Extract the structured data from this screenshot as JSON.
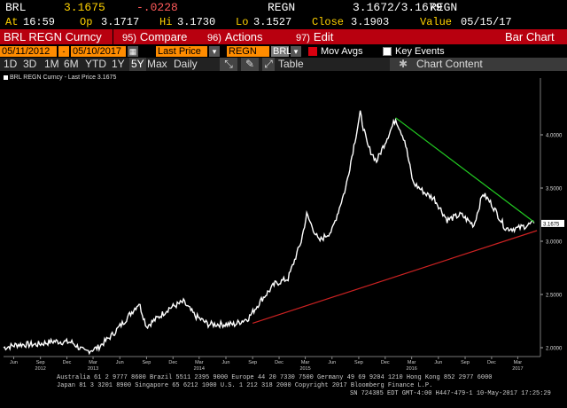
{
  "quote": {
    "ticker": "BRL",
    "last": "3.1675",
    "change": "-.0228",
    "bid_ask": "3.1672/3.1679",
    "bid_ask_label": "REGN",
    "source": "REGN"
  },
  "stats": {
    "at_label": "At",
    "at": "16:59",
    "op_label": "Op",
    "op": "3.1717",
    "hi_label": "Hi",
    "hi": "3.1730",
    "lo_label": "Lo",
    "lo": "3.1527",
    "close_label": "Close",
    "close": "3.1903",
    "value_label": "Value",
    "value": "05/15/17"
  },
  "functions": {
    "tab_label": "BRL REGN Curncy",
    "compare_num": "95)",
    "compare": "Compare",
    "actions_num": "96)",
    "actions": "Actions",
    "edit_num": "97)",
    "edit": "Edit",
    "chart_type": "Bar Chart"
  },
  "controls": {
    "start_date": "05/11/2012",
    "end_date": "05/10/2017",
    "price_type": "Last Price",
    "source": "REGN",
    "security": "BRL",
    "mov_avgs": "Mov Avgs",
    "key_events": "Key Events"
  },
  "periods": {
    "items": [
      "1D",
      "3D",
      "1M",
      "6M",
      "YTD",
      "1Y",
      "5Y",
      "Max"
    ],
    "active": "5Y",
    "frequency": "Daily",
    "table": "Table",
    "chart_content": "Chart Content"
  },
  "chart_data": {
    "type": "line",
    "legend": "BRL REGN Curncy - Last Price 3.1675",
    "last_price_label": "3.1675",
    "y_ticks": [
      "4.0000",
      "3.5000",
      "3.0000",
      "2.5000",
      "2.0000"
    ],
    "ylim": [
      1.95,
      4.45
    ],
    "x_month_labels": [
      "Jun",
      "Sep",
      "Dec",
      "Mar",
      "Jun",
      "Sep",
      "Dec",
      "Mar",
      "Jun",
      "Sep",
      "Dec",
      "Mar",
      "Jun",
      "Sep",
      "Dec",
      "Mar",
      "Jun",
      "Sep",
      "Dec",
      "Mar"
    ],
    "x_year_labels": [
      "2012",
      "2013",
      "2014",
      "2015",
      "2016",
      "2017"
    ],
    "series": [
      {
        "color": "#ffffff",
        "values": [
          [
            "2012-05-11",
            2.0
          ],
          [
            "2012-07-01",
            2.03
          ],
          [
            "2012-09-01",
            2.03
          ],
          [
            "2012-11-01",
            2.06
          ],
          [
            "2013-01-01",
            2.05
          ],
          [
            "2013-02-15",
            1.96
          ],
          [
            "2013-04-01",
            2.0
          ],
          [
            "2013-05-20",
            2.12
          ],
          [
            "2013-07-01",
            2.25
          ],
          [
            "2013-08-20",
            2.42
          ],
          [
            "2013-09-15",
            2.2
          ],
          [
            "2013-11-01",
            2.3
          ],
          [
            "2013-12-01",
            2.37
          ],
          [
            "2014-01-20",
            2.43
          ],
          [
            "2014-03-01",
            2.3
          ],
          [
            "2014-04-15",
            2.22
          ],
          [
            "2014-06-01",
            2.22
          ],
          [
            "2014-07-15",
            2.22
          ],
          [
            "2014-09-01",
            2.28
          ],
          [
            "2014-10-15",
            2.45
          ],
          [
            "2014-12-01",
            2.6
          ],
          [
            "2015-01-15",
            2.65
          ],
          [
            "2015-03-01",
            3.0
          ],
          [
            "2015-03-20",
            3.25
          ],
          [
            "2015-05-01",
            3.0
          ],
          [
            "2015-06-15",
            3.1
          ],
          [
            "2015-08-01",
            3.5
          ],
          [
            "2015-09-20",
            4.2
          ],
          [
            "2015-10-15",
            3.9
          ],
          [
            "2015-11-15",
            3.75
          ],
          [
            "2016-01-20",
            4.15
          ],
          [
            "2016-02-20",
            3.95
          ],
          [
            "2016-03-20",
            3.55
          ],
          [
            "2016-05-01",
            3.45
          ],
          [
            "2016-06-01",
            3.4
          ],
          [
            "2016-07-15",
            3.2
          ],
          [
            "2016-09-01",
            3.25
          ],
          [
            "2016-10-15",
            3.15
          ],
          [
            "2016-11-15",
            3.45
          ],
          [
            "2016-12-15",
            3.35
          ],
          [
            "2017-02-01",
            3.12
          ],
          [
            "2017-03-15",
            3.12
          ],
          [
            "2017-04-15",
            3.15
          ],
          [
            "2017-05-10",
            3.17
          ]
        ]
      }
    ],
    "trendlines": [
      {
        "color": "#22cc22",
        "from": [
          "2016-01-20",
          4.16
        ],
        "to": [
          "2017-05-10",
          3.18
        ]
      },
      {
        "color": "#cc2222",
        "from": [
          "2014-09-15",
          2.23
        ],
        "to": [
          "2017-05-20",
          3.1
        ]
      }
    ]
  },
  "footer": {
    "line1": "Australia 61 2 9777 8600 Brazil 5511 2395 9000 Europe 44 20 7330 7500 Germany 49 69 9204 1210 Hong Kong 852 2977 6000",
    "line2": "Japan 81 3 3201 8900          Singapore 65 6212 1000          U.S. 1 212 318 2000          Copyright 2017 Bloomberg Finance L.P.",
    "line3": "SN 724385 EDT  GMT-4:00 H447-479-1 10-May-2017 17:25:29"
  }
}
